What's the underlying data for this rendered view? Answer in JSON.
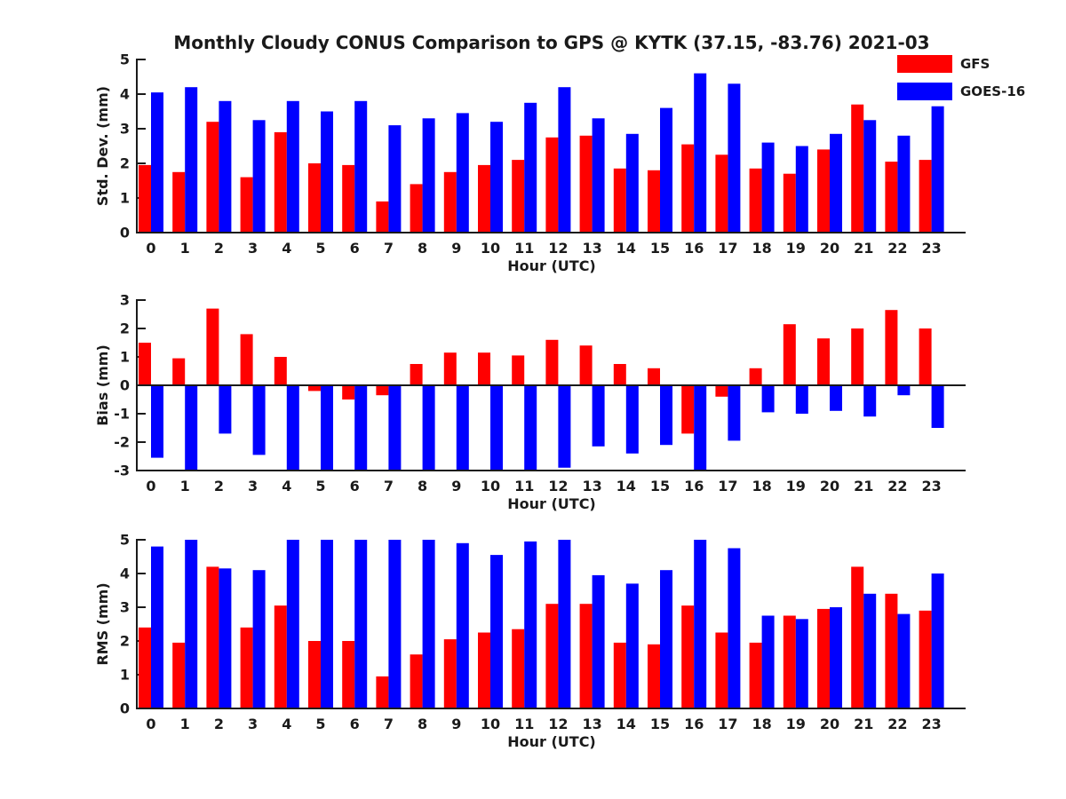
{
  "page_title": "Monthly Cloudy CONUS Comparison to GPS @ KYTK (37.15, -83.76) 2021-03",
  "colors": {
    "gfs": "#ff0000",
    "goes16": "#0000ff",
    "axis": "#1a1a1a",
    "text": "#1a1a1a",
    "background": "#ffffff"
  },
  "legend": {
    "position": "top-right",
    "items": [
      {
        "label": "GFS",
        "color": "#ff0000"
      },
      {
        "label": "GOES-16",
        "color": "#0000ff"
      }
    ]
  },
  "chart_data": [
    {
      "id": "stddev",
      "type": "bar",
      "title": "",
      "ylabel": "Std. Dev. (mm)",
      "xlabel": "Hour (UTC)",
      "ylim": [
        0,
        5
      ],
      "yticks": [
        0,
        1,
        2,
        3,
        4,
        5
      ],
      "grid": false,
      "categories": [
        "0",
        "1",
        "2",
        "3",
        "4",
        "5",
        "6",
        "7",
        "8",
        "9",
        "10",
        "11",
        "12",
        "13",
        "14",
        "15",
        "16",
        "17",
        "18",
        "19",
        "20",
        "21",
        "22",
        "23"
      ],
      "series": [
        {
          "name": "GFS",
          "color": "#ff0000",
          "values": [
            1.95,
            1.75,
            3.2,
            1.6,
            2.9,
            2.0,
            1.95,
            0.9,
            1.4,
            1.75,
            1.95,
            2.1,
            2.75,
            2.8,
            1.85,
            1.8,
            2.55,
            2.25,
            1.85,
            1.7,
            2.4,
            3.7,
            2.05,
            2.1
          ]
        },
        {
          "name": "GOES-16",
          "color": "#0000ff",
          "values": [
            4.05,
            4.2,
            3.8,
            3.25,
            3.8,
            3.5,
            3.8,
            3.1,
            3.3,
            3.45,
            3.2,
            3.75,
            4.2,
            3.3,
            2.85,
            3.6,
            4.6,
            4.3,
            2.6,
            2.5,
            2.85,
            3.25,
            2.8,
            3.65
          ]
        }
      ]
    },
    {
      "id": "bias",
      "type": "bar",
      "title": "",
      "ylabel": "Bias (mm)",
      "xlabel": "Hour (UTC)",
      "ylim": [
        -3,
        3
      ],
      "yticks": [
        -3,
        -2,
        -1,
        0,
        1,
        2,
        3
      ],
      "grid": false,
      "categories": [
        "0",
        "1",
        "2",
        "3",
        "4",
        "5",
        "6",
        "7",
        "8",
        "9",
        "10",
        "11",
        "12",
        "13",
        "14",
        "15",
        "16",
        "17",
        "18",
        "19",
        "20",
        "21",
        "22",
        "23"
      ],
      "series": [
        {
          "name": "GFS",
          "color": "#ff0000",
          "values": [
            1.5,
            0.95,
            2.7,
            1.8,
            1.0,
            -0.2,
            -0.5,
            -0.35,
            0.75,
            1.15,
            1.15,
            1.05,
            1.6,
            1.4,
            0.75,
            0.6,
            -1.7,
            -0.4,
            0.6,
            2.15,
            1.65,
            2.0,
            2.65,
            2.0
          ]
        },
        {
          "name": "GOES-16",
          "color": "#0000ff",
          "values": [
            -2.55,
            -3.0,
            -1.7,
            -2.45,
            -3.0,
            -3.0,
            -3.0,
            -3.0,
            -3.0,
            -3.0,
            -3.0,
            -3.0,
            -2.9,
            -2.15,
            -2.4,
            -2.1,
            -3.0,
            -1.95,
            -0.95,
            -1.0,
            -0.9,
            -1.1,
            -0.35,
            -1.5
          ]
        }
      ]
    },
    {
      "id": "rms",
      "type": "bar",
      "title": "",
      "ylabel": "RMS (mm)",
      "xlabel": "Hour (UTC)",
      "ylim": [
        0,
        5
      ],
      "yticks": [
        0,
        1,
        2,
        3,
        4,
        5
      ],
      "grid": false,
      "categories": [
        "0",
        "1",
        "2",
        "3",
        "4",
        "5",
        "6",
        "7",
        "8",
        "9",
        "10",
        "11",
        "12",
        "13",
        "14",
        "15",
        "16",
        "17",
        "18",
        "19",
        "20",
        "21",
        "22",
        "23"
      ],
      "series": [
        {
          "name": "GFS",
          "color": "#ff0000",
          "values": [
            2.4,
            1.95,
            4.2,
            2.4,
            3.05,
            2.0,
            2.0,
            0.95,
            1.6,
            2.05,
            2.25,
            2.35,
            3.1,
            3.1,
            1.95,
            1.9,
            3.05,
            2.25,
            1.95,
            2.75,
            2.95,
            4.2,
            3.4,
            2.9
          ]
        },
        {
          "name": "GOES-16",
          "color": "#0000ff",
          "values": [
            4.8,
            5.0,
            4.15,
            4.1,
            5.0,
            5.0,
            5.0,
            5.0,
            5.0,
            4.9,
            4.55,
            4.95,
            5.0,
            3.95,
            3.7,
            4.1,
            5.0,
            4.75,
            2.75,
            2.65,
            3.0,
            3.4,
            2.8,
            4.0
          ]
        }
      ]
    }
  ]
}
